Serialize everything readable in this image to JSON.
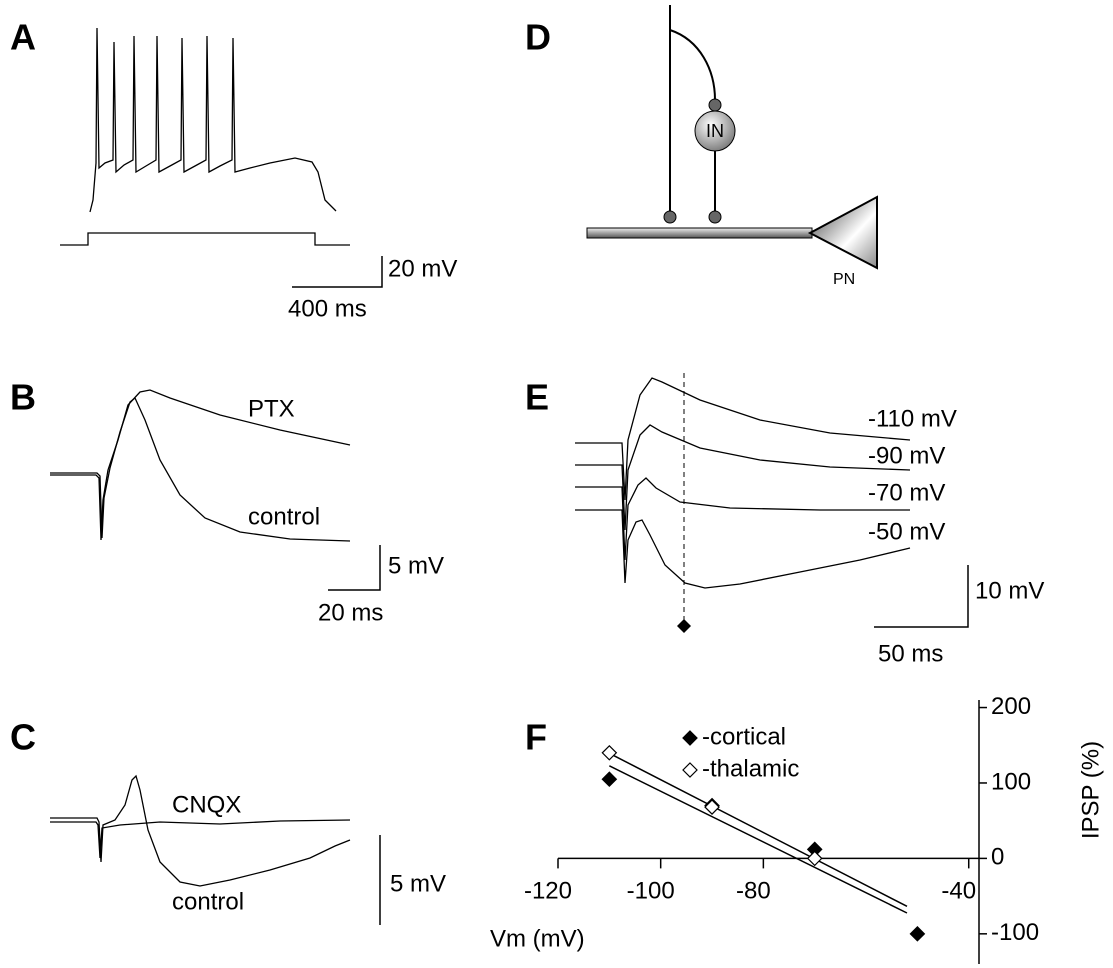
{
  "panels": {
    "A": {
      "letter": "A",
      "scale_bars": [
        "20 mV",
        "400 ms"
      ]
    },
    "B": {
      "letter": "B",
      "traces": [
        "PTX",
        "control"
      ],
      "scale_bars": [
        "5 mV",
        "20 ms"
      ]
    },
    "C": {
      "letter": "C",
      "traces": [
        "CNQX",
        "control"
      ],
      "scale_bars": [
        "5 mV"
      ]
    },
    "D": {
      "letter": "D",
      "labels": [
        "IN",
        "PN"
      ]
    },
    "E": {
      "letter": "E",
      "traces": [
        "-110 mV",
        "-90 mV",
        "-70 mV",
        "-50 mV"
      ],
      "scale_bars": [
        "10 mV",
        "50 ms"
      ]
    },
    "F": {
      "letter": "F"
    }
  },
  "chart_data": {
    "type": "scatter",
    "x_label": "Vm (mV)",
    "y_label": "IPSP (%)",
    "xlim": [
      -120,
      -38
    ],
    "ylim": [
      -140,
      210
    ],
    "xticks": [
      -120,
      -100,
      -80,
      -40
    ],
    "yticks": [
      -100,
      0,
      100,
      200
    ],
    "series": [
      {
        "name": "-cortical",
        "color": "#000000",
        "x": [
          -110,
          -90,
          -70,
          -50
        ],
        "values": [
          105,
          70,
          12,
          -100
        ]
      },
      {
        "name": "-thalamic",
        "color": "#ffffff",
        "x": [
          -110,
          -90,
          -70
        ],
        "values": [
          140,
          68,
          0
        ]
      }
    ]
  }
}
